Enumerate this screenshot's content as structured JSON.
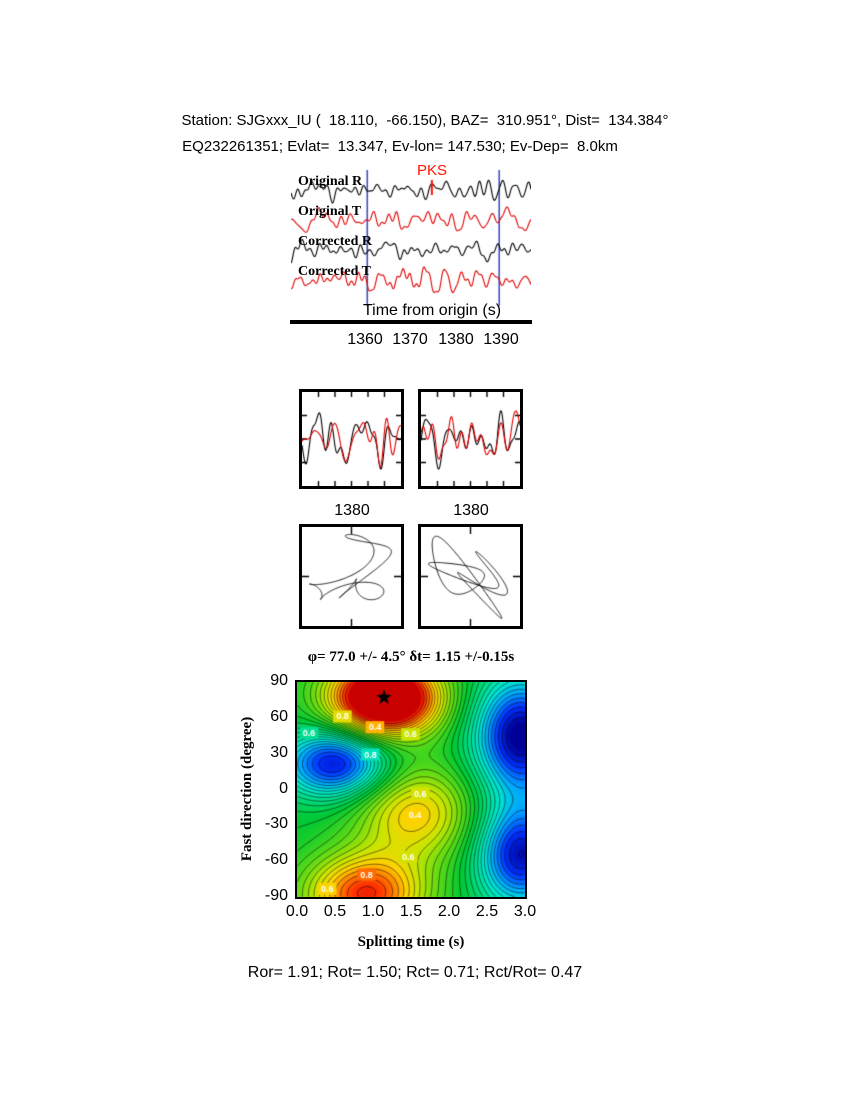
{
  "header": {
    "line1": "Station: SJGxxx_IU (  18.110,  -66.150), BAZ=  310.951°, Dist=  134.384°",
    "line2": "EQ232261351; Evlat=  13.347, Ev-lon= 147.530; Ev-Dep=  8.0km"
  },
  "footer": {
    "stats": "Ror= 1.91; Rot= 1.50; Rct= 0.71; Rct/Rot= 0.47"
  },
  "chart_data": [
    {
      "id": "seismograms",
      "type": "line",
      "xlabel": "Time from origin (s)",
      "xlim": [
        1344,
        1396.5
      ],
      "xticks": [
        "1360",
        "1370",
        "1380",
        "1390"
      ],
      "series": [
        {
          "name": "Original R",
          "color": "#000000",
          "seed": 11
        },
        {
          "name": "Original T",
          "color": "#e00000",
          "seed": 22
        },
        {
          "name": "Corrected R",
          "color": "#000000",
          "seed": 33
        },
        {
          "name": "Corrected T",
          "color": "#e00000",
          "seed": 44
        }
      ],
      "phase": {
        "label": "PKS",
        "time": 1374.7,
        "color": "#ff1400"
      },
      "window": [
        1360.5,
        1389.5
      ],
      "window_color": "#3c50be"
    },
    {
      "id": "window-zoom",
      "type": "line",
      "panels": [
        {
          "xtick": "1380",
          "seeds": [
            101,
            201
          ]
        },
        {
          "xtick": "1380",
          "seeds": [
            108,
            214
          ]
        }
      ],
      "colors": [
        "#000000",
        "#e00000"
      ]
    },
    {
      "id": "particle-motion",
      "type": "scatter",
      "panels": [
        {
          "seed": 301
        },
        {
          "seed": 302
        }
      ]
    },
    {
      "id": "error-surface",
      "type": "heatmap",
      "title": "φ= 77.0 +/- 4.5° δt= 1.15 +/-0.15s",
      "xlabel": "Splitting time (s)",
      "ylabel": "Fast direction (degree)",
      "xlim": [
        0,
        3
      ],
      "ylim": [
        -90,
        90
      ],
      "xticks": [
        "0.0",
        "0.5",
        "1.0",
        "1.5",
        "2.0",
        "2.5",
        "3.0"
      ],
      "yticks": [
        "90",
        "60",
        "30",
        "0",
        "-30",
        "-60",
        "-90"
      ],
      "best": {
        "phi_deg": 77.0,
        "phi_err_deg": 4.5,
        "dt_s": 1.15,
        "dt_err_s": 0.15
      },
      "star_glyph": "★",
      "contour_labels": [
        {
          "text": "0.8",
          "dt": 0.6,
          "phi": 61
        },
        {
          "text": "0.6",
          "dt": 0.16,
          "phi": 47
        },
        {
          "text": "0.4",
          "dt": 1.03,
          "phi": 52
        },
        {
          "text": "0.6",
          "dt": 1.5,
          "phi": 46
        },
        {
          "text": "0.8",
          "dt": 0.97,
          "phi": 29
        },
        {
          "text": "0.6",
          "dt": 1.63,
          "phi": -4
        },
        {
          "text": "0.4",
          "dt": 1.56,
          "phi": -22
        },
        {
          "text": "0.6",
          "dt": 1.47,
          "phi": -57
        },
        {
          "text": "0.6",
          "dt": 0.4,
          "phi": -84
        },
        {
          "text": "0.8",
          "dt": 0.92,
          "phi": -72
        }
      ],
      "field": {
        "base": 0.5,
        "gaussians": [
          {
            "a": 0.78,
            "x": 1.15,
            "y": 77,
            "sx": 0.5,
            "sy": 22
          },
          {
            "a": 0.45,
            "x": 0.9,
            "y": -88,
            "sx": 0.55,
            "sy": 24
          },
          {
            "a": -0.52,
            "x": 2.95,
            "y": 45,
            "sx": 0.42,
            "sy": 34
          },
          {
            "a": -0.47,
            "x": 2.95,
            "y": -55,
            "sx": 0.4,
            "sy": 30
          },
          {
            "a": -0.46,
            "x": 0.5,
            "y": 22,
            "sx": 0.48,
            "sy": 20
          },
          {
            "a": 0.3,
            "x": 1.55,
            "y": -20,
            "sx": 0.55,
            "sy": 28
          }
        ]
      },
      "levels": {
        "min": 0.03,
        "max": 0.97,
        "step": 0.034
      },
      "colormap": [
        [
          0.0,
          "#000096"
        ],
        [
          0.1,
          "#0032ff"
        ],
        [
          0.2,
          "#00a0ff"
        ],
        [
          0.3,
          "#00e6d2"
        ],
        [
          0.4,
          "#00dc82"
        ],
        [
          0.5,
          "#00c832"
        ],
        [
          0.62,
          "#64dc14"
        ],
        [
          0.72,
          "#c8e600"
        ],
        [
          0.8,
          "#ffd200"
        ],
        [
          0.88,
          "#ff7800"
        ],
        [
          0.94,
          "#ff3200"
        ],
        [
          1.0,
          "#c80000"
        ]
      ]
    }
  ]
}
